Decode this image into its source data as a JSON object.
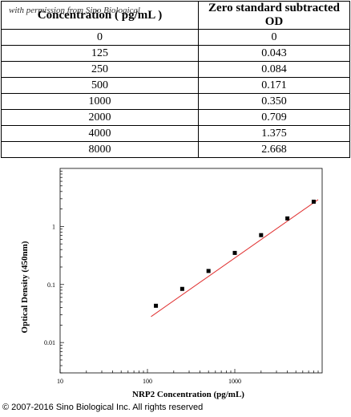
{
  "watermark": "with permission from Sino Biological",
  "table": {
    "headers": [
      "Concentration ( pg/mL )",
      "Zero standard subtracted OD"
    ],
    "rows": [
      [
        "0",
        "0"
      ],
      [
        "125",
        "0.043"
      ],
      [
        "250",
        "0.084"
      ],
      [
        "500",
        "0.171"
      ],
      [
        "1000",
        "0.350"
      ],
      [
        "2000",
        "0.709"
      ],
      [
        "4000",
        "1.375"
      ],
      [
        "8000",
        "2.668"
      ]
    ]
  },
  "chart_data": {
    "type": "scatter",
    "xlabel": "NRP2 Concentration (pg/mL)",
    "ylabel": "Optical Density (450nm)",
    "x_scale": "log",
    "y_scale": "log",
    "xlim": [
      10,
      10000
    ],
    "ylim": [
      0.003,
      10
    ],
    "x_ticks": [
      {
        "v": 10,
        "label": "10"
      },
      {
        "v": 100,
        "label": "100"
      },
      {
        "v": 1000,
        "label": "1000"
      }
    ],
    "y_ticks": [
      {
        "v": 0.01,
        "label": "0.01"
      },
      {
        "v": 0.1,
        "label": "0.1"
      },
      {
        "v": 1,
        "label": "1"
      }
    ],
    "grid": false,
    "series": [
      {
        "x": [
          125,
          250,
          500,
          1000,
          2000,
          4000,
          8000
        ],
        "y": [
          0.043,
          0.084,
          0.171,
          0.35,
          0.709,
          1.375,
          2.668
        ],
        "color": "#000000"
      }
    ],
    "fit_line": {
      "x": [
        110,
        9000
      ],
      "y": [
        0.028,
        2.9
      ],
      "color": "#e03030"
    }
  },
  "copyright": "© 2007-2016 Sino Biological Inc. All rights reserved"
}
